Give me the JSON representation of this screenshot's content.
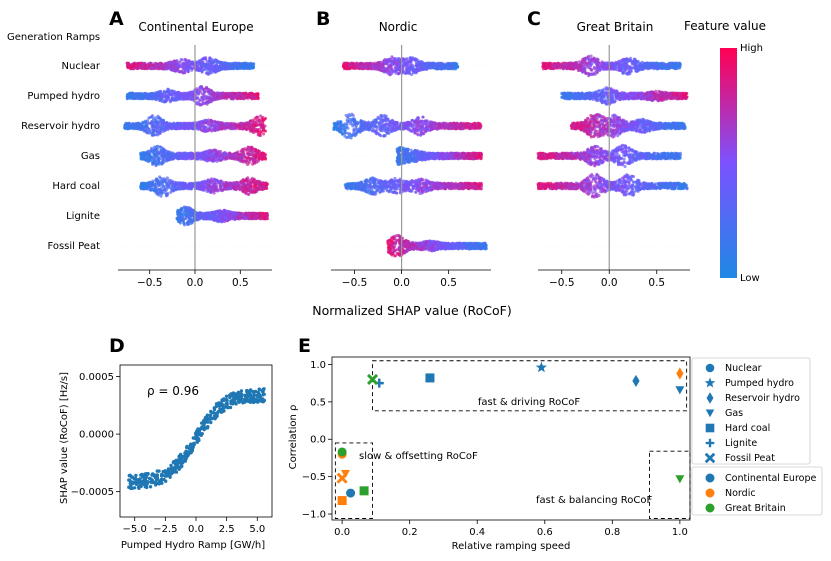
{
  "panel_letters": [
    "A",
    "B",
    "C",
    "D",
    "E"
  ],
  "generation_ramps_header": "Generation Ramps",
  "shap_xlabel": "Normalized SHAP value (RoCoF)",
  "colorbar": {
    "title": "Feature value",
    "high": "High",
    "low": "Low",
    "colors": [
      "#1e88e5",
      "#7c52ff",
      "#ff0052"
    ]
  },
  "colors": {
    "series_blue": "#1f77b4",
    "cont_eu": "#1f77b4",
    "nordic": "#ff7f0e",
    "gb": "#2ca02c",
    "beeswarm_low": "#1e88e5",
    "beeswarm_mid": "#7c52ff",
    "beeswarm_high": "#ff0052"
  },
  "chart_data": [
    {
      "type": "beeswarm",
      "panel": "A",
      "title": "Continental Europe",
      "features": [
        "Nuclear",
        "Pumped hydro",
        "Reservoir hydro",
        "Gas",
        "Hard coal",
        "Lignite",
        "Fossil Peat"
      ],
      "xlim": [
        -0.85,
        0.85
      ],
      "xticks": [
        -0.5,
        0.0,
        0.5
      ],
      "xtick_labels": [
        "−0.5",
        "0.0",
        "0.5"
      ],
      "xlabel": "Normalized SHAP value (RoCoF)",
      "rows": [
        {
          "feature": "Nuclear",
          "range": [
            -0.75,
            0.65
          ],
          "peaks": [
            [
              0.15,
              0.8
            ],
            [
              -0.15,
              0.6
            ]
          ],
          "trend": -1
        },
        {
          "feature": "Pumped hydro",
          "range": [
            -0.75,
            0.7
          ],
          "peaks": [
            [
              0.08,
              0.9
            ],
            [
              -0.3,
              0.5
            ]
          ],
          "trend": 1
        },
        {
          "feature": "Reservoir hydro",
          "range": [
            -0.78,
            0.78
          ],
          "peaks": [
            [
              -0.45,
              1.0
            ],
            [
              0.72,
              0.9
            ],
            [
              0.15,
              0.4
            ]
          ],
          "trend": 1
        },
        {
          "feature": "Gas",
          "range": [
            -0.6,
            0.78
          ],
          "peaks": [
            [
              -0.42,
              0.9
            ],
            [
              0.6,
              0.8
            ],
            [
              0.2,
              0.4
            ]
          ],
          "trend": 1
        },
        {
          "feature": "Hard coal",
          "range": [
            -0.6,
            0.8
          ],
          "peaks": [
            [
              -0.35,
              1.0
            ],
            [
              0.2,
              0.6
            ],
            [
              0.6,
              0.7
            ]
          ],
          "trend": 1
        },
        {
          "feature": "Lignite",
          "range": [
            -0.2,
            0.8
          ],
          "peaks": [
            [
              -0.1,
              0.8
            ],
            [
              0.3,
              0.4
            ]
          ],
          "trend": 1
        }
      ]
    },
    {
      "type": "beeswarm",
      "panel": "B",
      "title": "Nordic",
      "xlim": [
        -0.75,
        0.95
      ],
      "xticks": [
        -0.5,
        0.0,
        0.5
      ],
      "xtick_labels": [
        "−0.5",
        "0.0",
        "0.5"
      ],
      "rows": [
        {
          "feature": "Nuclear",
          "range": [
            -0.62,
            0.6
          ],
          "peaks": [
            [
              -0.1,
              0.8
            ],
            [
              0.1,
              0.7
            ]
          ],
          "trend": -1
        },
        {
          "feature": "Reservoir hydro",
          "range": [
            -0.72,
            0.85
          ],
          "peaks": [
            [
              -0.55,
              1.3
            ],
            [
              -0.2,
              1.0
            ],
            [
              0.2,
              0.8
            ]
          ],
          "trend": 1
        },
        {
          "feature": "Gas",
          "range": [
            -0.05,
            0.85
          ],
          "peaks": [
            [
              -0.02,
              0.7
            ],
            [
              0.15,
              0.3
            ]
          ],
          "trend": 1
        },
        {
          "feature": "Hard coal",
          "range": [
            -0.6,
            0.85
          ],
          "peaks": [
            [
              -0.3,
              0.7
            ],
            [
              -0.05,
              0.6
            ],
            [
              0.2,
              0.6
            ]
          ],
          "trend": 1
        },
        {
          "feature": "Fossil Peat",
          "range": [
            -0.15,
            0.9
          ],
          "peaks": [
            [
              -0.05,
              1.0
            ],
            [
              0.3,
              0.3
            ]
          ],
          "trend": -1
        }
      ]
    },
    {
      "type": "beeswarm",
      "panel": "C",
      "title": "Great Britain",
      "xlim": [
        -0.75,
        0.85
      ],
      "xticks": [
        -0.5,
        0.0,
        0.5
      ],
      "xtick_labels": [
        "−0.5",
        "0.0",
        "0.5"
      ],
      "rows": [
        {
          "feature": "Nuclear",
          "range": [
            -0.7,
            0.75
          ],
          "peaks": [
            [
              -0.2,
              0.9
            ],
            [
              0.2,
              0.8
            ]
          ],
          "trend": -1
        },
        {
          "feature": "Pumped hydro",
          "range": [
            -0.5,
            0.82
          ],
          "peaks": [
            [
              -0.02,
              0.7
            ],
            [
              0.5,
              0.25
            ]
          ],
          "trend": 1
        },
        {
          "feature": "Reservoir hydro",
          "range": [
            -0.4,
            0.8
          ],
          "peaks": [
            [
              -0.15,
              1.2
            ],
            [
              0.05,
              1.0
            ],
            [
              0.35,
              0.5
            ]
          ],
          "trend": -1
        },
        {
          "feature": "Gas",
          "range": [
            -0.75,
            0.75
          ],
          "peaks": [
            [
              -0.15,
              0.9
            ],
            [
              0.15,
              1.0
            ]
          ],
          "trend": -1
        },
        {
          "feature": "Hard coal",
          "range": [
            -0.75,
            0.82
          ],
          "peaks": [
            [
              -0.15,
              1.2
            ],
            [
              0.2,
              1.1
            ]
          ],
          "trend": -1
        }
      ]
    },
    {
      "type": "scatter",
      "panel": "D",
      "annotation": "ρ = 0.96",
      "xlabel": "Pumped Hydro Ramp [GW/h]",
      "ylabel": "SHAP value (RoCoF) [Hz/s]",
      "xlim": [
        -6.2,
        6.2
      ],
      "ylim": [
        -0.00072,
        0.0006
      ],
      "xticks": [
        -5.0,
        -2.5,
        0.0,
        2.5,
        5.0
      ],
      "xtick_labels": [
        "−5.0",
        "−2.5",
        "0.0",
        "2.5",
        "5.0"
      ],
      "yticks": [
        -0.0005,
        0.0,
        0.0005
      ],
      "ytick_labels": [
        "−0.0005",
        "0.0000",
        "0.0005"
      ],
      "curve": {
        "shape": "sigmoid",
        "amplitude": 0.00045,
        "scale": 2.2,
        "points": 420,
        "x_range": [
          -5.5,
          5.6
        ]
      }
    },
    {
      "type": "scatter",
      "panel": "E",
      "xlabel": "Relative ramping speed",
      "ylabel": "Correlation ρ",
      "xlim": [
        -0.03,
        1.03
      ],
      "ylim": [
        -1.08,
        1.1
      ],
      "xticks": [
        0.0,
        0.2,
        0.4,
        0.6,
        0.8,
        1.0
      ],
      "xtick_labels": [
        "0.0",
        "0.2",
        "0.4",
        "0.6",
        "0.8",
        "1.0"
      ],
      "yticks": [
        -1.0,
        -0.5,
        0.0,
        0.5,
        1.0
      ],
      "ytick_labels": [
        "−1.0",
        "−0.5",
        "0.0",
        "0.5",
        "1.0"
      ],
      "points": [
        {
          "x": 0.0,
          "y": -0.2,
          "marker": "circle",
          "region": "Nordic"
        },
        {
          "x": 0.0,
          "y": -0.17,
          "marker": "circle",
          "region": "Great Britain"
        },
        {
          "x": 0.025,
          "y": -0.72,
          "marker": "circle",
          "region": "Continental Europe"
        },
        {
          "x": 0.59,
          "y": 0.96,
          "marker": "star",
          "region": "Continental Europe"
        },
        {
          "x": 1.0,
          "y": 0.88,
          "marker": "diamond",
          "region": "Nordic"
        },
        {
          "x": 0.87,
          "y": 0.78,
          "marker": "diamond",
          "region": "Continental Europe"
        },
        {
          "x": 0.01,
          "y": -0.46,
          "marker": "triangle",
          "region": "Nordic"
        },
        {
          "x": 1.0,
          "y": -0.53,
          "marker": "triangle",
          "region": "Great Britain"
        },
        {
          "x": 1.0,
          "y": 0.66,
          "marker": "triangle",
          "region": "Continental Europe"
        },
        {
          "x": 0.26,
          "y": 0.82,
          "marker": "square",
          "region": "Continental Europe"
        },
        {
          "x": 0.0,
          "y": -0.82,
          "marker": "square",
          "region": "Nordic"
        },
        {
          "x": 0.065,
          "y": -0.69,
          "marker": "square",
          "region": "Great Britain"
        },
        {
          "x": 0.11,
          "y": 0.75,
          "marker": "plus",
          "region": "Continental Europe"
        },
        {
          "x": 0.0,
          "y": -0.52,
          "marker": "x",
          "region": "Nordic"
        },
        {
          "x": 0.09,
          "y": 0.8,
          "marker": "x",
          "region": "Great Britain"
        }
      ],
      "boxes": [
        {
          "label": "fast & driving RoCoF",
          "x": [
            0.09,
            1.02
          ],
          "y": [
            0.38,
            1.05
          ]
        },
        {
          "label": "slow & offsetting RoCoF",
          "x": [
            -0.02,
            0.09
          ],
          "y": [
            -0.05,
            -1.06
          ]
        },
        {
          "label": "fast & balancing RoCoF",
          "x": [
            0.91,
            1.03
          ],
          "y": [
            -0.16,
            -1.06
          ]
        }
      ],
      "legend_markers": [
        {
          "label": "Nuclear",
          "marker": "circle"
        },
        {
          "label": "Pumped hydro",
          "marker": "star"
        },
        {
          "label": "Reservoir hydro",
          "marker": "diamond"
        },
        {
          "label": "Gas",
          "marker": "triangle"
        },
        {
          "label": "Hard coal",
          "marker": "square"
        },
        {
          "label": "Lignite",
          "marker": "plus"
        },
        {
          "label": "Fossil Peat",
          "marker": "x"
        }
      ],
      "legend_regions": [
        {
          "label": "Continental Europe",
          "color": "#1f77b4"
        },
        {
          "label": "Nordic",
          "color": "#ff7f0e"
        },
        {
          "label": "Great Britain",
          "color": "#2ca02c"
        }
      ]
    }
  ]
}
